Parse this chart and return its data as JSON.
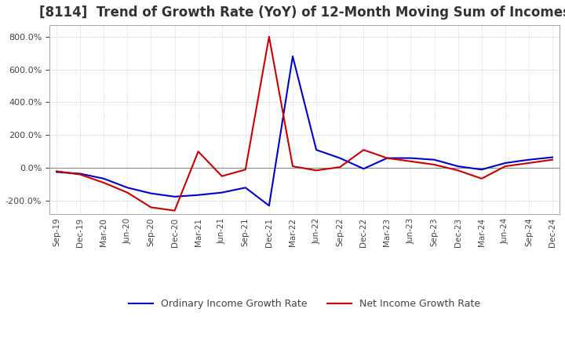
{
  "title": "[8114]  Trend of Growth Rate (YoY) of 12-Month Moving Sum of Incomes",
  "title_fontsize": 12,
  "ylim": [
    -280,
    870
  ],
  "yticks": [
    -200,
    0,
    200,
    400,
    600,
    800
  ],
  "line_blue_color": "#0000CC",
  "line_red_color": "#CC0000",
  "legend_labels": [
    "Ordinary Income Growth Rate",
    "Net Income Growth Rate"
  ],
  "background_color": "#FFFFFF",
  "grid_color": "#BBBBBB",
  "x_labels": [
    "Sep-19",
    "Dec-19",
    "Mar-20",
    "Jun-20",
    "Sep-20",
    "Dec-20",
    "Mar-21",
    "Jun-21",
    "Sep-21",
    "Dec-21",
    "Mar-22",
    "Jun-22",
    "Sep-22",
    "Dec-22",
    "Mar-23",
    "Jun-23",
    "Sep-23",
    "Dec-23",
    "Mar-24",
    "Jun-24",
    "Sep-24",
    "Dec-24"
  ],
  "ordinary_income_growth": [
    -25,
    -35,
    -65,
    -120,
    -155,
    -175,
    -165,
    -150,
    -120,
    -230,
    680,
    110,
    60,
    -5,
    60,
    60,
    50,
    10,
    -10,
    30,
    50,
    65
  ],
  "net_income_growth": [
    -20,
    -40,
    -90,
    -150,
    -240,
    -260,
    100,
    -50,
    -10,
    800,
    10,
    -15,
    5,
    110,
    60,
    40,
    20,
    -15,
    -65,
    10,
    30,
    50
  ]
}
